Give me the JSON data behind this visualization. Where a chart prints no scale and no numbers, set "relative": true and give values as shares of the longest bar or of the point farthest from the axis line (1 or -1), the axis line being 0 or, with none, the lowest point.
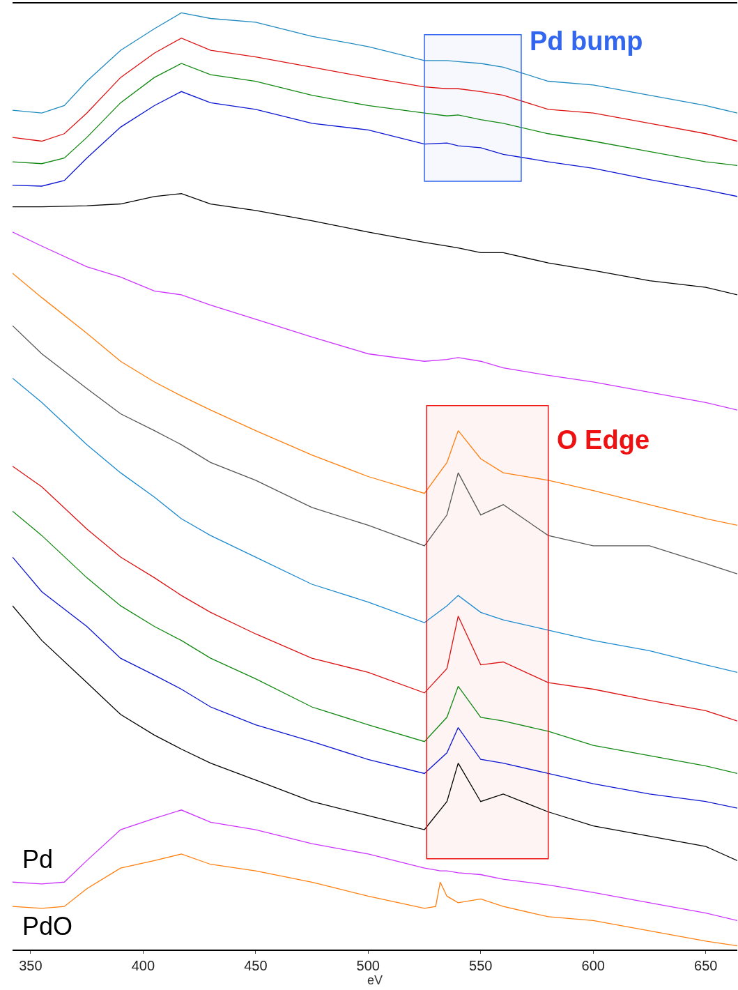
{
  "chart_data": {
    "type": "line",
    "relative": true,
    "xlabel": "eV",
    "xlim": [
      342,
      664
    ],
    "xticks": [
      350,
      400,
      450,
      500,
      550,
      600,
      650
    ],
    "legend": false,
    "marker": "none",
    "line_style": "solid",
    "bands": [
      {
        "axis": "x",
        "from": 525,
        "to": 568,
        "label": "Pd bump",
        "color": "#3366ee"
      },
      {
        "axis": "x",
        "from": 526,
        "to": 580,
        "label": "O Edge",
        "color": "#ee1111"
      }
    ],
    "series": [
      {
        "color": "#1f8ac0",
        "x": [
          342,
          355,
          365,
          375,
          390,
          405,
          417,
          430,
          450,
          475,
          500,
          525,
          535,
          540,
          550,
          560,
          580,
          600,
          625,
          650,
          664
        ],
        "values": [
          0.896,
          0.893,
          0.901,
          0.927,
          0.96,
          0.983,
          1,
          0.994,
          0.99,
          0.975,
          0.964,
          0.949,
          0.949,
          0.948,
          0.946,
          0.942,
          0.927,
          0.923,
          0.912,
          0.901,
          0.893
        ]
      },
      {
        "color": "#dd1111",
        "x": [
          342,
          355,
          365,
          375,
          390,
          405,
          417,
          430,
          450,
          475,
          500,
          525,
          535,
          540,
          550,
          560,
          580,
          600,
          625,
          650,
          664
        ],
        "values": [
          0.867,
          0.863,
          0.871,
          0.893,
          0.931,
          0.957,
          0.973,
          0.96,
          0.953,
          0.942,
          0.931,
          0.921,
          0.919,
          0.919,
          0.916,
          0.912,
          0.897,
          0.893,
          0.882,
          0.871,
          0.863
        ]
      },
      {
        "color": "#118811",
        "x": [
          342,
          355,
          365,
          375,
          390,
          405,
          417,
          430,
          450,
          475,
          500,
          525,
          535,
          540,
          550,
          560,
          580,
          600,
          625,
          650,
          664
        ],
        "values": [
          0.841,
          0.839,
          0.845,
          0.867,
          0.904,
          0.931,
          0.946,
          0.934,
          0.927,
          0.912,
          0.901,
          0.893,
          0.89,
          0.891,
          0.886,
          0.882,
          0.871,
          0.863,
          0.852,
          0.841,
          0.837
        ]
      },
      {
        "color": "#0a14d2",
        "x": [
          342,
          355,
          365,
          375,
          390,
          405,
          417,
          430,
          450,
          475,
          500,
          525,
          535,
          540,
          550,
          560,
          580,
          600,
          625,
          650,
          664
        ],
        "values": [
          0.816,
          0.815,
          0.821,
          0.845,
          0.878,
          0.901,
          0.916,
          0.904,
          0.897,
          0.882,
          0.875,
          0.86,
          0.861,
          0.858,
          0.856,
          0.849,
          0.841,
          0.834,
          0.822,
          0.811,
          0.804
        ]
      },
      {
        "color": "#000000",
        "x": [
          342,
          355,
          375,
          390,
          405,
          417,
          430,
          450,
          475,
          500,
          525,
          535,
          540,
          550,
          560,
          580,
          600,
          625,
          650,
          664
        ],
        "values": [
          0.793,
          0.793,
          0.794,
          0.796,
          0.804,
          0.807,
          0.796,
          0.789,
          0.778,
          0.766,
          0.755,
          0.751,
          0.749,
          0.744,
          0.744,
          0.733,
          0.725,
          0.714,
          0.707,
          0.699
        ]
      },
      {
        "color": "#cc33ff",
        "x": [
          342,
          355,
          375,
          390,
          405,
          417,
          430,
          450,
          475,
          500,
          525,
          535,
          540,
          550,
          560,
          580,
          600,
          625,
          650,
          664
        ],
        "values": [
          0.766,
          0.751,
          0.729,
          0.718,
          0.703,
          0.699,
          0.688,
          0.673,
          0.654,
          0.636,
          0.628,
          0.63,
          0.632,
          0.628,
          0.621,
          0.613,
          0.606,
          0.595,
          0.584,
          0.576
        ]
      },
      {
        "color": "#ff7f0e",
        "x": [
          342,
          355,
          375,
          390,
          405,
          417,
          430,
          450,
          475,
          500,
          525,
          535,
          540,
          550,
          560,
          580,
          600,
          625,
          650,
          664
        ],
        "values": [
          0.722,
          0.696,
          0.658,
          0.628,
          0.606,
          0.591,
          0.576,
          0.554,
          0.528,
          0.505,
          0.487,
          0.52,
          0.554,
          0.524,
          0.509,
          0.501,
          0.49,
          0.475,
          0.46,
          0.453
        ]
      },
      {
        "color": "#555555",
        "x": [
          342,
          355,
          375,
          390,
          405,
          417,
          430,
          450,
          475,
          500,
          525,
          535,
          540,
          550,
          560,
          580,
          600,
          625,
          650,
          664
        ],
        "values": [
          0.666,
          0.636,
          0.599,
          0.572,
          0.554,
          0.539,
          0.52,
          0.501,
          0.472,
          0.453,
          0.431,
          0.464,
          0.509,
          0.464,
          0.475,
          0.442,
          0.431,
          0.431,
          0.412,
          0.401
        ]
      },
      {
        "color": "#1b8ad0",
        "x": [
          342,
          355,
          375,
          390,
          405,
          417,
          430,
          450,
          475,
          500,
          525,
          535,
          540,
          550,
          560,
          580,
          600,
          625,
          650,
          664
        ],
        "values": [
          0.61,
          0.584,
          0.539,
          0.509,
          0.483,
          0.46,
          0.442,
          0.419,
          0.39,
          0.371,
          0.349,
          0.367,
          0.378,
          0.36,
          0.352,
          0.341,
          0.33,
          0.319,
          0.304,
          0.296
        ]
      },
      {
        "color": "#dd1111",
        "x": [
          342,
          355,
          375,
          390,
          405,
          417,
          430,
          450,
          475,
          500,
          525,
          535,
          540,
          550,
          560,
          580,
          600,
          625,
          650,
          664
        ],
        "values": [
          0.516,
          0.494,
          0.449,
          0.419,
          0.397,
          0.378,
          0.36,
          0.337,
          0.311,
          0.296,
          0.274,
          0.3,
          0.356,
          0.304,
          0.307,
          0.285,
          0.278,
          0.266,
          0.255,
          0.244
        ]
      },
      {
        "color": "#118811",
        "x": [
          342,
          355,
          375,
          390,
          405,
          417,
          430,
          450,
          475,
          500,
          525,
          535,
          540,
          550,
          560,
          580,
          600,
          625,
          650,
          664
        ],
        "values": [
          0.468,
          0.442,
          0.397,
          0.367,
          0.345,
          0.33,
          0.311,
          0.289,
          0.259,
          0.24,
          0.222,
          0.248,
          0.281,
          0.248,
          0.244,
          0.233,
          0.218,
          0.207,
          0.196,
          0.188
        ]
      },
      {
        "color": "#0a14d2",
        "x": [
          342,
          355,
          375,
          390,
          405,
          417,
          430,
          450,
          475,
          500,
          525,
          535,
          540,
          550,
          560,
          580,
          600,
          625,
          650,
          664
        ],
        "values": [
          0.419,
          0.382,
          0.345,
          0.311,
          0.293,
          0.278,
          0.259,
          0.24,
          0.222,
          0.203,
          0.188,
          0.21,
          0.237,
          0.203,
          0.199,
          0.188,
          0.177,
          0.166,
          0.158,
          0.151
        ]
      },
      {
        "color": "#000000",
        "x": [
          342,
          355,
          375,
          390,
          405,
          417,
          430,
          450,
          475,
          500,
          525,
          535,
          540,
          550,
          560,
          580,
          600,
          625,
          650,
          664
        ],
        "values": [
          0.367,
          0.33,
          0.285,
          0.251,
          0.229,
          0.214,
          0.199,
          0.181,
          0.158,
          0.143,
          0.128,
          0.158,
          0.199,
          0.158,
          0.166,
          0.147,
          0.132,
          0.121,
          0.11,
          0.095
        ]
      },
      {
        "name": "Pd",
        "color": "#cc33ff",
        "x": [
          342,
          355,
          365,
          375,
          390,
          405,
          417,
          430,
          450,
          475,
          500,
          525,
          530,
          532,
          535,
          540,
          550,
          560,
          580,
          600,
          625,
          650,
          664
        ],
        "values": [
          0.072,
          0.07,
          0.072,
          0.095,
          0.128,
          0.14,
          0.149,
          0.136,
          0.128,
          0.113,
          0.102,
          0.087,
          0.085,
          0.084,
          0.084,
          0.082,
          0.08,
          0.075,
          0.069,
          0.061,
          0.05,
          0.039,
          0.031
        ]
      },
      {
        "name": "PdO",
        "color": "#ff7f0e",
        "x": [
          342,
          355,
          365,
          375,
          390,
          405,
          417,
          430,
          450,
          475,
          500,
          525,
          530,
          532,
          535,
          540,
          550,
          560,
          580,
          600,
          625,
          650,
          664
        ],
        "values": [
          0.046,
          0.044,
          0.046,
          0.065,
          0.087,
          0.095,
          0.102,
          0.091,
          0.084,
          0.072,
          0.057,
          0.044,
          0.046,
          0.072,
          0.057,
          0.05,
          0.054,
          0.046,
          0.035,
          0.031,
          0.02,
          0.009,
          0.004
        ]
      }
    ]
  }
}
